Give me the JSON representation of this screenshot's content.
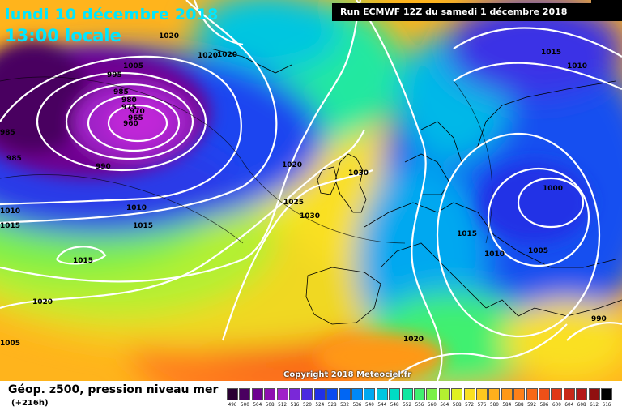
{
  "header": {
    "date_line": "lundi 10 décembre 2018",
    "time_line": "13:00 locale",
    "run_info": "Run ECMWF 12Z du samedi 1 décembre 2018"
  },
  "footer": {
    "title": "Géop. z500, pression niveau mer",
    "subtitle": "(+216h)",
    "copyright": "Copyright 2018 Meteociel.fr"
  },
  "pressure_labels": [
    "1020",
    "1020",
    "1020",
    "1005",
    "995",
    "985",
    "980",
    "975",
    "970",
    "965",
    "960",
    "990",
    "985",
    "985",
    "1010",
    "1015",
    "1010",
    "1015",
    "1020",
    "1005",
    "1020",
    "1025",
    "1030",
    "1030",
    "1015",
    "1010",
    "1015",
    "1000",
    "1010",
    "1005",
    "1020",
    "1015",
    "990"
  ],
  "color_scale": {
    "labels": [
      "496",
      "500",
      "504",
      "508",
      "512",
      "516",
      "520",
      "524",
      "528",
      "532",
      "536",
      "540",
      "544",
      "548",
      "552",
      "556",
      "560",
      "564",
      "568",
      "572",
      "576",
      "580",
      "584",
      "588",
      "592",
      "596",
      "600",
      "604",
      "608",
      "612",
      "616"
    ],
    "colors": [
      "#2a0033",
      "#4a0060",
      "#6e0090",
      "#8e10b0",
      "#a020c8",
      "#7a28d8",
      "#4a2ae0",
      "#2030e6",
      "#0a4af0",
      "#0066f4",
      "#0088f6",
      "#00a8f0",
      "#00c6e0",
      "#00dcc4",
      "#10e8a0",
      "#40f070",
      "#7af048",
      "#b4f030",
      "#e0f020",
      "#fae020",
      "#ffc81e",
      "#ffb01c",
      "#ff9818",
      "#ff8018",
      "#f86818",
      "#ee5018",
      "#e03818",
      "#c82818",
      "#b41818",
      "#900f10",
      "#000000"
    ]
  }
}
